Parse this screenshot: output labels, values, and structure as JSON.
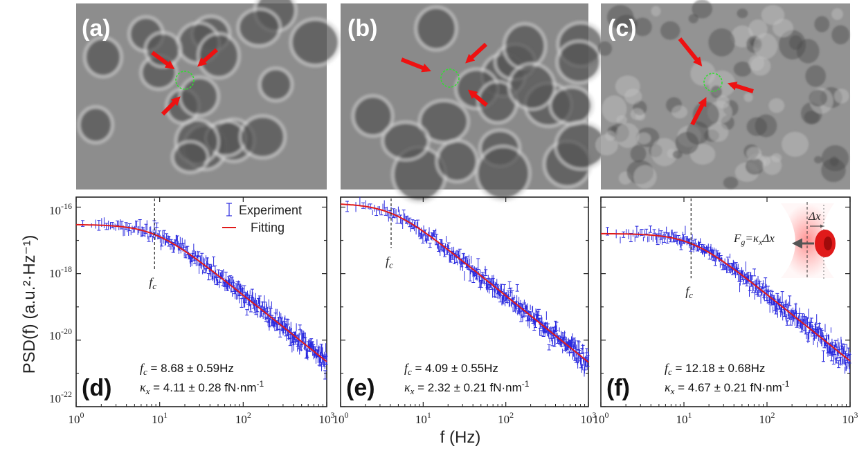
{
  "panels_top": [
    {
      "label": "(a)"
    },
    {
      "label": "(b)"
    },
    {
      "label": "(c)"
    }
  ],
  "axis": {
    "ylabel": "PSD(f) (a.u.²·Hz⁻¹)",
    "xlabel": "f (Hz)",
    "y_ticks": [
      {
        "base": "10",
        "exp": "-16"
      },
      {
        "base": "10",
        "exp": "-18"
      },
      {
        "base": "10",
        "exp": "-20"
      },
      {
        "base": "10",
        "exp": "-22"
      }
    ],
    "x_ticks": [
      {
        "base": "10",
        "exp": "0"
      },
      {
        "base": "10",
        "exp": "1"
      },
      {
        "base": "10",
        "exp": "2"
      },
      {
        "base": "10",
        "exp": "3"
      }
    ]
  },
  "legend": {
    "experiment": "Experiment",
    "fitting": "Fitting",
    "experiment_color": "#2a2adf",
    "fitting_color": "#e01a1a"
  },
  "inset": {
    "force_eq": "F",
    "force_sub": "g",
    "force_rhs": "=κ",
    "force_rhs_sub": "x",
    "force_dx": "Δx",
    "dx_label": "Δx"
  },
  "fc_marker": "f",
  "fc_marker_sub": "c",
  "chart_data": [
    {
      "type": "scatter",
      "panel": "(d)",
      "xlabel": "f (Hz)",
      "ylabel": "PSD(f) (a.u.²·Hz⁻¹)",
      "x_scale": "log",
      "y_scale": "log",
      "xlim": [
        1,
        1000
      ],
      "ylim": [
        1e-22,
        2e-16
      ],
      "fc": 8.68,
      "fc_text": "f",
      "fc_sub": "c",
      "fc_value_text": " = 8.68 ± 0.59Hz",
      "kappa_text": "κ",
      "kappa_sub": "x",
      "kappa_value_text": " = 4.11 ± 0.28 fN·nm",
      "kappa_unit_exp": "-1",
      "plateau": 3e-17,
      "series": [
        {
          "name": "Experiment",
          "kind": "points"
        },
        {
          "name": "Fitting",
          "kind": "line"
        }
      ]
    },
    {
      "type": "scatter",
      "panel": "(e)",
      "xlabel": "f (Hz)",
      "x_scale": "log",
      "y_scale": "log",
      "xlim": [
        1,
        1000
      ],
      "ylim": [
        1e-22,
        2e-16
      ],
      "fc": 4.09,
      "fc_text": "f",
      "fc_sub": "c",
      "fc_value_text": " = 4.09 ± 0.55Hz",
      "kappa_text": "κ",
      "kappa_sub": "x",
      "kappa_value_text": " = 2.32 ± 0.21 fN·nm",
      "kappa_unit_exp": "-1",
      "plateau": 1.3e-16,
      "series": [
        {
          "kind": "points"
        },
        {
          "kind": "line"
        }
      ]
    },
    {
      "type": "scatter",
      "panel": "(f)",
      "xlabel": "f (Hz)",
      "x_scale": "log",
      "y_scale": "log",
      "xlim": [
        1,
        1000
      ],
      "ylim": [
        1e-22,
        2e-16
      ],
      "fc": 12.18,
      "fc_text": "f",
      "fc_sub": "c",
      "fc_value_text": " = 12.18 ± 0.68Hz",
      "kappa_text": "κ",
      "kappa_sub": "x",
      "kappa_value_text": " = 4.67 ± 0.21 fN·nm",
      "kappa_unit_exp": "-1",
      "plateau": 1.6e-17,
      "series": [
        {
          "kind": "points"
        },
        {
          "kind": "line"
        }
      ]
    }
  ]
}
